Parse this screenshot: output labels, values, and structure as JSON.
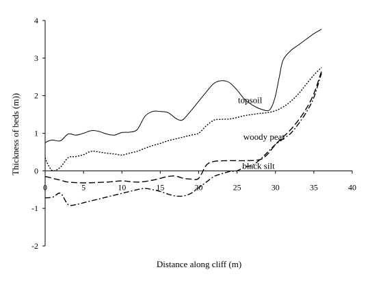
{
  "chart_data": {
    "type": "line",
    "title": "",
    "xlabel": "Distance along cliff (m)",
    "ylabel": "Thickness of beds (m))",
    "xlim": [
      0,
      40
    ],
    "ylim": [
      -2,
      4
    ],
    "x_ticks": [
      "0",
      "5",
      "10",
      "15",
      "20",
      "25",
      "30",
      "35",
      "40"
    ],
    "y_ticks": [
      "-2",
      "-1",
      "0",
      "1",
      "2",
      "3",
      "4"
    ],
    "grid": false,
    "legend": "none",
    "series": [
      {
        "name": "topsoil",
        "style": "solid",
        "color": "#000000",
        "points": [
          [
            0,
            0.75
          ],
          [
            0.5,
            0.8
          ],
          [
            1,
            0.82
          ],
          [
            2,
            0.8
          ],
          [
            3,
            0.98
          ],
          [
            4,
            0.95
          ],
          [
            5,
            1.0
          ],
          [
            6,
            1.07
          ],
          [
            7,
            1.05
          ],
          [
            8,
            0.98
          ],
          [
            9,
            0.95
          ],
          [
            10,
            1.02
          ],
          [
            11,
            1.03
          ],
          [
            12,
            1.1
          ],
          [
            13,
            1.45
          ],
          [
            14,
            1.58
          ],
          [
            15,
            1.58
          ],
          [
            16,
            1.55
          ],
          [
            17,
            1.4
          ],
          [
            17.5,
            1.35
          ],
          [
            18,
            1.37
          ],
          [
            19,
            1.6
          ],
          [
            20,
            1.85
          ],
          [
            21,
            2.1
          ],
          [
            22,
            2.33
          ],
          [
            23,
            2.4
          ],
          [
            24,
            2.35
          ],
          [
            25,
            2.15
          ],
          [
            26,
            1.9
          ],
          [
            27,
            1.75
          ],
          [
            28,
            1.65
          ],
          [
            29,
            1.6
          ],
          [
            29.5,
            1.7
          ],
          [
            30,
            2.0
          ],
          [
            30.5,
            2.5
          ],
          [
            31,
            2.95
          ],
          [
            32,
            3.2
          ],
          [
            33,
            3.35
          ],
          [
            34,
            3.5
          ],
          [
            35,
            3.65
          ],
          [
            36,
            3.77
          ]
        ]
      },
      {
        "name": "woody peat",
        "style": "dotted",
        "color": "#000000",
        "points": [
          [
            0,
            0.35
          ],
          [
            0.3,
            0.2
          ],
          [
            1,
            0.0
          ],
          [
            2,
            0.1
          ],
          [
            3,
            0.35
          ],
          [
            4,
            0.38
          ],
          [
            5,
            0.43
          ],
          [
            6,
            0.52
          ],
          [
            7,
            0.5
          ],
          [
            8,
            0.47
          ],
          [
            9,
            0.45
          ],
          [
            10,
            0.42
          ],
          [
            11,
            0.47
          ],
          [
            12,
            0.52
          ],
          [
            13,
            0.6
          ],
          [
            14,
            0.67
          ],
          [
            15,
            0.73
          ],
          [
            16,
            0.8
          ],
          [
            17,
            0.85
          ],
          [
            18,
            0.9
          ],
          [
            19,
            0.95
          ],
          [
            20,
            1.0
          ],
          [
            21,
            1.2
          ],
          [
            22,
            1.35
          ],
          [
            23,
            1.37
          ],
          [
            24,
            1.38
          ],
          [
            25,
            1.42
          ],
          [
            26,
            1.47
          ],
          [
            27,
            1.5
          ],
          [
            28,
            1.53
          ],
          [
            29,
            1.55
          ],
          [
            30,
            1.6
          ],
          [
            31,
            1.7
          ],
          [
            32,
            1.85
          ],
          [
            33,
            2.05
          ],
          [
            34,
            2.3
          ],
          [
            35,
            2.55
          ],
          [
            36,
            2.75
          ]
        ]
      },
      {
        "name": "black silt",
        "style": "long-dash",
        "color": "#000000",
        "points": [
          [
            0,
            -0.15
          ],
          [
            1,
            -0.2
          ],
          [
            2,
            -0.25
          ],
          [
            3,
            -0.3
          ],
          [
            5,
            -0.32
          ],
          [
            8,
            -0.3
          ],
          [
            10,
            -0.27
          ],
          [
            12,
            -0.3
          ],
          [
            14,
            -0.25
          ],
          [
            16,
            -0.15
          ],
          [
            17,
            -0.14
          ],
          [
            18,
            -0.2
          ],
          [
            19,
            -0.22
          ],
          [
            20,
            -0.2
          ],
          [
            21,
            0.15
          ],
          [
            22,
            0.25
          ],
          [
            24,
            0.27
          ],
          [
            26,
            0.27
          ],
          [
            28,
            0.3
          ],
          [
            29,
            0.45
          ],
          [
            30,
            0.7
          ],
          [
            31,
            0.9
          ],
          [
            32,
            1.1
          ],
          [
            33,
            1.35
          ],
          [
            34,
            1.65
          ],
          [
            35,
            2.05
          ],
          [
            36,
            2.65
          ]
        ]
      },
      {
        "name": "",
        "style": "dash-dot",
        "color": "#000000",
        "points": [
          [
            0,
            -0.72
          ],
          [
            1,
            -0.7
          ],
          [
            2,
            -0.6
          ],
          [
            3,
            -0.9
          ],
          [
            4,
            -0.9
          ],
          [
            5,
            -0.85
          ],
          [
            6,
            -0.8
          ],
          [
            7,
            -0.75
          ],
          [
            8,
            -0.7
          ],
          [
            9,
            -0.65
          ],
          [
            10,
            -0.6
          ],
          [
            11,
            -0.55
          ],
          [
            12,
            -0.5
          ],
          [
            13,
            -0.47
          ],
          [
            14,
            -0.5
          ],
          [
            15,
            -0.55
          ],
          [
            16,
            -0.62
          ],
          [
            17,
            -0.67
          ],
          [
            18,
            -0.67
          ],
          [
            19,
            -0.6
          ],
          [
            20,
            -0.45
          ],
          [
            21,
            -0.3
          ],
          [
            22,
            -0.15
          ],
          [
            23,
            -0.08
          ],
          [
            24,
            -0.02
          ],
          [
            25,
            0.0
          ],
          [
            26,
            0.1
          ],
          [
            27,
            0.15
          ],
          [
            28,
            0.3
          ],
          [
            29,
            0.5
          ],
          [
            30,
            0.7
          ],
          [
            31,
            0.85
          ],
          [
            32,
            1.0
          ],
          [
            33,
            1.25
          ],
          [
            34,
            1.55
          ],
          [
            35,
            1.95
          ],
          [
            36,
            2.6
          ]
        ]
      }
    ],
    "annotations": [
      {
        "text": "topsoil",
        "x": 26.7,
        "y": 1.8
      },
      {
        "text": "woody peat",
        "x": 28.5,
        "y": 0.83
      },
      {
        "text": "black silt",
        "x": 27.8,
        "y": 0.05
      }
    ]
  }
}
